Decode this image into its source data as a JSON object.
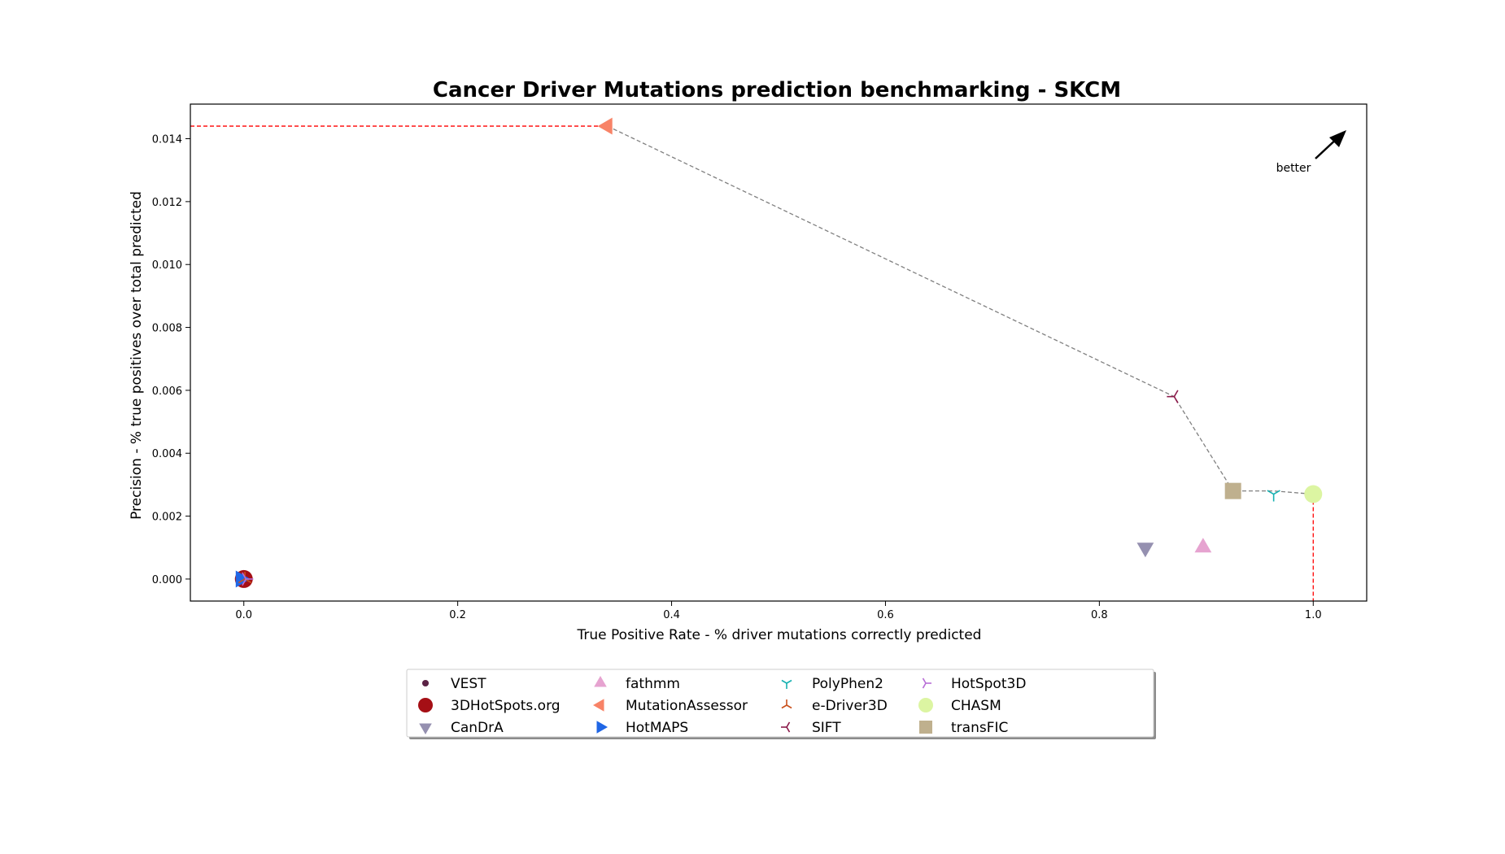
{
  "chart_data": {
    "type": "scatter",
    "title": "Cancer Driver Mutations prediction benchmarking - SKCM",
    "xlabel": "True Positive Rate - % driver mutations correctly predicted",
    "ylabel": "Precision - % true positives over total predicted",
    "xlim": [
      -0.05,
      1.05
    ],
    "ylim": [
      -0.0007,
      0.0151
    ],
    "xticks": [
      0.0,
      0.2,
      0.4,
      0.6,
      0.8,
      1.0
    ],
    "xtick_labels": [
      "0.0",
      "0.2",
      "0.4",
      "0.6",
      "0.8",
      "1.0"
    ],
    "yticks": [
      0.0,
      0.002,
      0.004,
      0.006,
      0.008,
      0.01,
      0.012,
      0.014
    ],
    "ytick_labels": [
      "0.000",
      "0.002",
      "0.004",
      "0.006",
      "0.008",
      "0.010",
      "0.012",
      "0.014"
    ],
    "grid": false,
    "legend_position": "bottom-center",
    "annotation": "better",
    "pareto_frontier": [
      [
        0.34,
        0.0144
      ],
      [
        0.87,
        0.0058
      ],
      [
        0.925,
        0.0028
      ],
      [
        0.963,
        0.0028
      ],
      [
        1.0,
        0.0027
      ]
    ],
    "series": [
      {
        "name": "VEST",
        "x": 1.0,
        "y": 0.0026,
        "marker": "point",
        "color": "#5b2245"
      },
      {
        "name": "3DHotSpots.org",
        "x": 0.0,
        "y": 0.0,
        "marker": "circle",
        "color": "#a50f15"
      },
      {
        "name": "CanDrA",
        "x": 0.843,
        "y": 0.001,
        "marker": "triangle-down",
        "color": "#9590b0"
      },
      {
        "name": "fathmm",
        "x": 0.897,
        "y": 0.001,
        "marker": "triangle-up",
        "color": "#e6a3d0"
      },
      {
        "name": "MutationAssessor",
        "x": 0.34,
        "y": 0.0144,
        "marker": "triangle-left",
        "color": "#f88367"
      },
      {
        "name": "HotMAPS",
        "x": -0.003,
        "y": 0.0,
        "marker": "triangle-right",
        "color": "#1f66e5"
      },
      {
        "name": "PolyPhen2",
        "x": 0.963,
        "y": 0.0027,
        "marker": "tri-down",
        "color": "#17b1b1"
      },
      {
        "name": "e-Driver3D",
        "x": 0.001,
        "y": 0.0,
        "marker": "tri-up",
        "color": "#c9501c"
      },
      {
        "name": "SIFT",
        "x": 0.87,
        "y": 0.0058,
        "marker": "tri-left",
        "color": "#8b1a4a"
      },
      {
        "name": "HotSpot3D",
        "x": 0.002,
        "y": 0.0,
        "marker": "tri-right",
        "color": "#b86ed6"
      },
      {
        "name": "CHASM",
        "x": 1.0,
        "y": 0.0027,
        "marker": "circle",
        "color": "#dcf5a2"
      },
      {
        "name": "transFIC",
        "x": 0.925,
        "y": 0.0028,
        "marker": "square",
        "color": "#bfb08e"
      }
    ],
    "legend_order": [
      "VEST",
      "3DHotSpots.org",
      "CanDrA",
      "fathmm",
      "MutationAssessor",
      "HotMAPS",
      "PolyPhen2",
      "e-Driver3D",
      "SIFT",
      "HotSpot3D",
      "CHASM",
      "transFIC"
    ]
  }
}
